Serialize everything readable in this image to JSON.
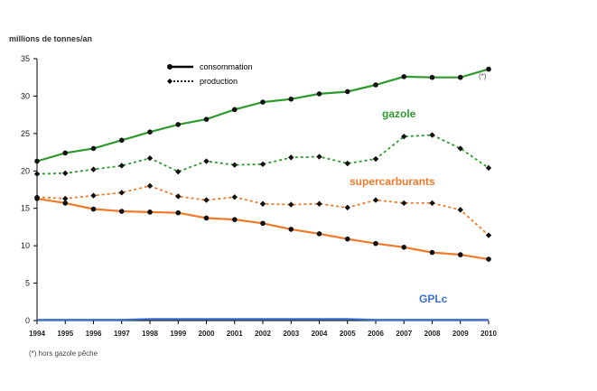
{
  "chart_data": {
    "type": "line",
    "ylabel": "millions de tonnes/an",
    "x": [
      1994,
      1995,
      1996,
      1997,
      1998,
      1999,
      2000,
      2001,
      2002,
      2003,
      2004,
      2005,
      2006,
      2007,
      2008,
      2009,
      2010
    ],
    "ylim": [
      0,
      35
    ],
    "yticks": [
      0,
      5,
      10,
      15,
      20,
      25,
      30,
      35
    ],
    "grid": false,
    "legend": {
      "position": "top-center",
      "entries": [
        {
          "label": "consommation",
          "style": "solid"
        },
        {
          "label": "production",
          "style": "dotted"
        }
      ]
    },
    "series": [
      {
        "name": "gazole",
        "kind": "consommation",
        "color": "#2e9a2e",
        "values": [
          21.3,
          22.4,
          23.0,
          24.1,
          25.2,
          26.2,
          26.9,
          28.2,
          29.2,
          29.6,
          30.3,
          30.6,
          31.5,
          32.6,
          32.5,
          32.5,
          33.6
        ]
      },
      {
        "name": "gazole",
        "kind": "production",
        "color": "#2e9a2e",
        "values": [
          19.6,
          19.7,
          20.2,
          20.7,
          21.7,
          19.9,
          21.3,
          20.8,
          20.9,
          21.8,
          21.9,
          21.0,
          21.6,
          24.6,
          24.8,
          23.0,
          20.4
        ]
      },
      {
        "name": "supercarburants",
        "kind": "consommation",
        "color": "#f07a2a",
        "values": [
          16.3,
          15.7,
          14.9,
          14.6,
          14.5,
          14.4,
          13.7,
          13.5,
          13.0,
          12.2,
          11.6,
          10.9,
          10.3,
          9.8,
          9.1,
          8.8,
          8.2
        ]
      },
      {
        "name": "supercarburants",
        "kind": "production",
        "color": "#f07a2a",
        "values": [
          16.5,
          16.3,
          16.7,
          17.1,
          18.0,
          16.6,
          16.1,
          16.5,
          15.6,
          15.5,
          15.6,
          15.1,
          16.1,
          15.7,
          15.7,
          14.8,
          11.4
        ]
      },
      {
        "name": "GPLc",
        "kind": "consommation",
        "color": "#3a6fd8",
        "values": [
          0.1,
          0.1,
          0.1,
          0.1,
          0.2,
          0.2,
          0.2,
          0.2,
          0.2,
          0.2,
          0.2,
          0.2,
          0.1,
          0.1,
          0.1,
          0.1,
          0.1
        ]
      }
    ],
    "annotations": {
      "gazole_label": "gazole",
      "super_label": "supercarburants",
      "gpl_label": "GPLc",
      "star_marker": "(*)",
      "footnote": "(*) hors gazole pêche"
    },
    "colors": {
      "axis": "#000000",
      "text": "#222222"
    }
  }
}
